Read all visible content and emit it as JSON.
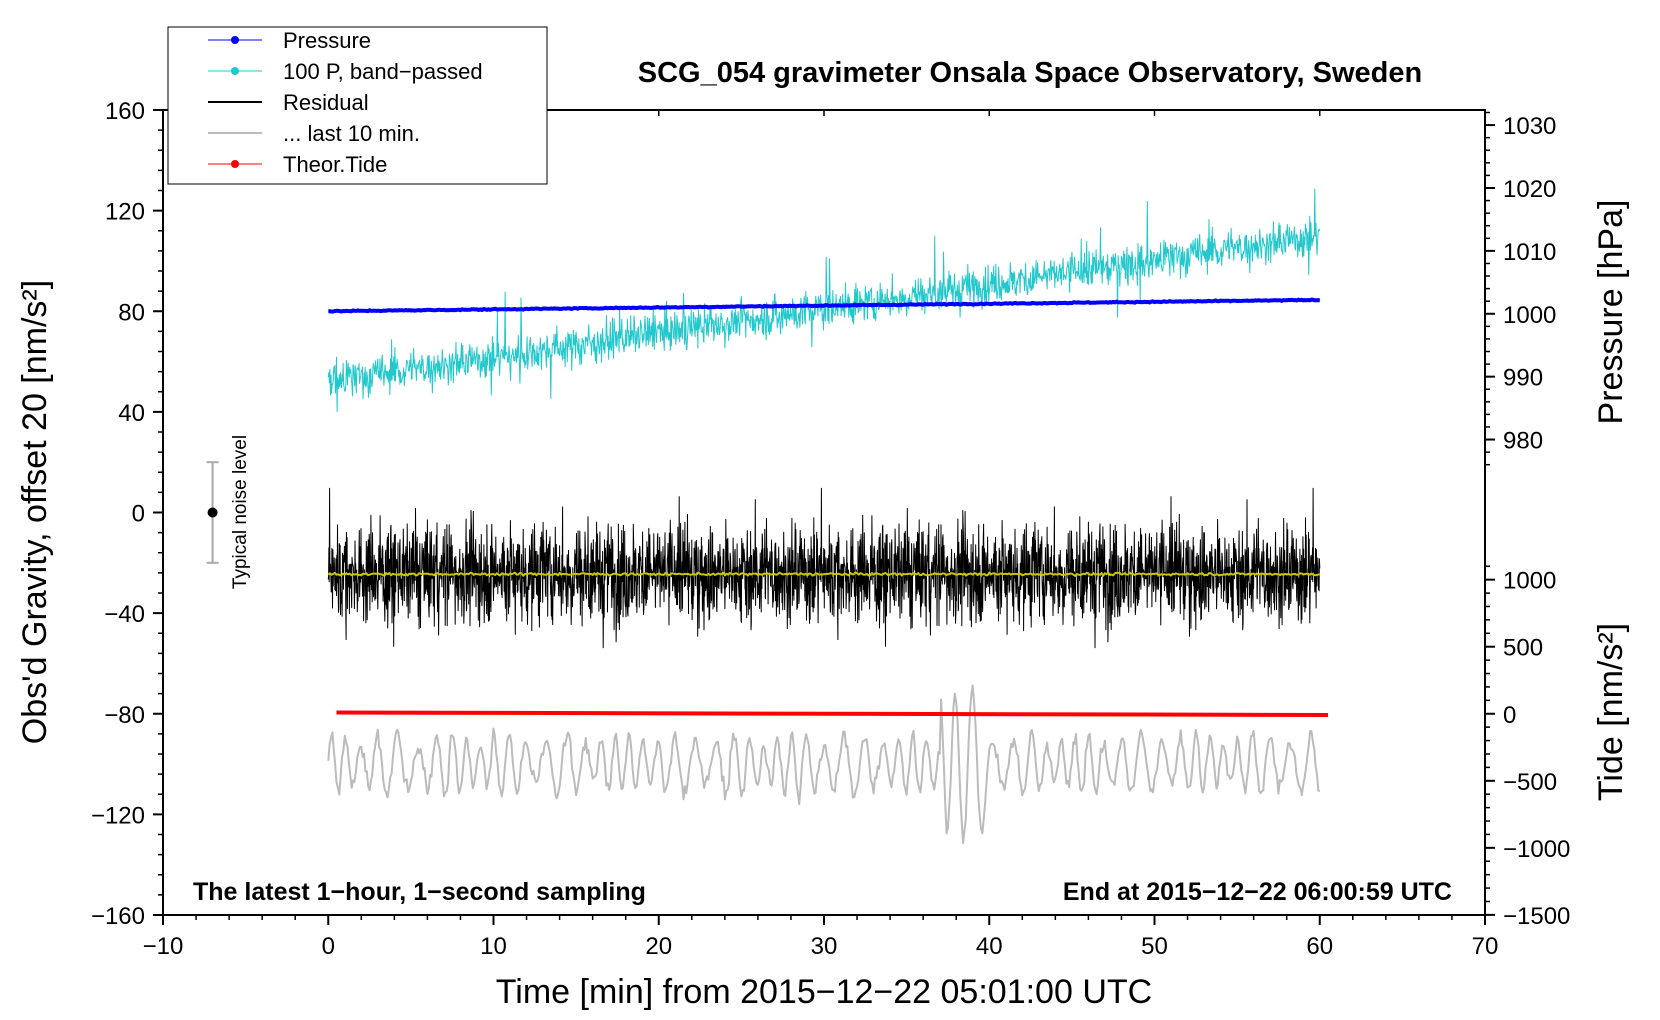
{
  "chart_data": {
    "type": "line",
    "title": "SCG_054 gravimeter Onsala Space Observatory, Sweden",
    "xlabel": "Time [min] from 2015−12−22 05:01:00 UTC",
    "ylabel_left": "Obs'd Gravity, offset 20 [nm/s²]",
    "ylabel_right_top": "Pressure [hPa]",
    "ylabel_right_bottom": "Tide [nm/s²]",
    "xlim": [
      -10,
      70
    ],
    "ylim_left": [
      -160,
      160
    ],
    "x_ticks": [
      -10,
      0,
      10,
      20,
      30,
      40,
      50,
      60,
      70
    ],
    "x_tick_labels": [
      "−10",
      "0",
      "10",
      "20",
      "30",
      "40",
      "50",
      "60",
      "70"
    ],
    "y_left_ticks": [
      160,
      120,
      80,
      40,
      0,
      -40,
      -80,
      -120,
      -160
    ],
    "y_left_tick_labels": [
      "160",
      "120",
      "80",
      "40",
      "0",
      "−40",
      "−80",
      "−120",
      "−160"
    ],
    "pressure_axis": {
      "ticks": [
        1030,
        1020,
        1010,
        1000,
        990,
        980
      ],
      "tick_labels": [
        "1030",
        "1020",
        "1010",
        "1000",
        "990",
        "980"
      ],
      "ref_value": 1000,
      "ref_left_value": 79,
      "per_unit": 2.5
    },
    "tide_axis": {
      "ticks": [
        1000,
        500,
        0,
        -500,
        -1000,
        -1500
      ],
      "tick_labels": [
        "1000",
        "500",
        "0",
        "−500",
        "−1000",
        "−1500"
      ],
      "ref_value": 0,
      "ref_left_value": -80,
      "per_unit": 0.0533
    },
    "series": [
      {
        "name": "Pressure",
        "color": "#0000ff",
        "start": [
          0,
          80
        ],
        "end": [
          60,
          84.5
        ]
      },
      {
        "name": "100 P, band−passed",
        "color": "#22c8cc",
        "trend_start": 52,
        "trend_end": 110,
        "amplitude": 9
      },
      {
        "name": "Residual",
        "color": "#000000",
        "center": -24,
        "amplitude": 19
      },
      {
        "name": "... last 10 min.",
        "color": "#bbbbbb",
        "center": -100,
        "amplitude": 12
      },
      {
        "name": "Theor.Tide",
        "color": "#ff0000",
        "start": [
          0.5,
          -79.5
        ],
        "end": [
          60.5,
          -80.5
        ]
      }
    ],
    "mean_residual": {
      "color": "#c8c800",
      "level": -24.5
    },
    "noise_marker": {
      "label": "Typical noise level",
      "x": -7,
      "y": 0,
      "range": [
        -20,
        20
      ]
    },
    "annotations": {
      "bottom_left": "The latest 1−hour, 1−second sampling",
      "bottom_right": "End at 2015−12−22 06:00:59 UTC"
    }
  }
}
